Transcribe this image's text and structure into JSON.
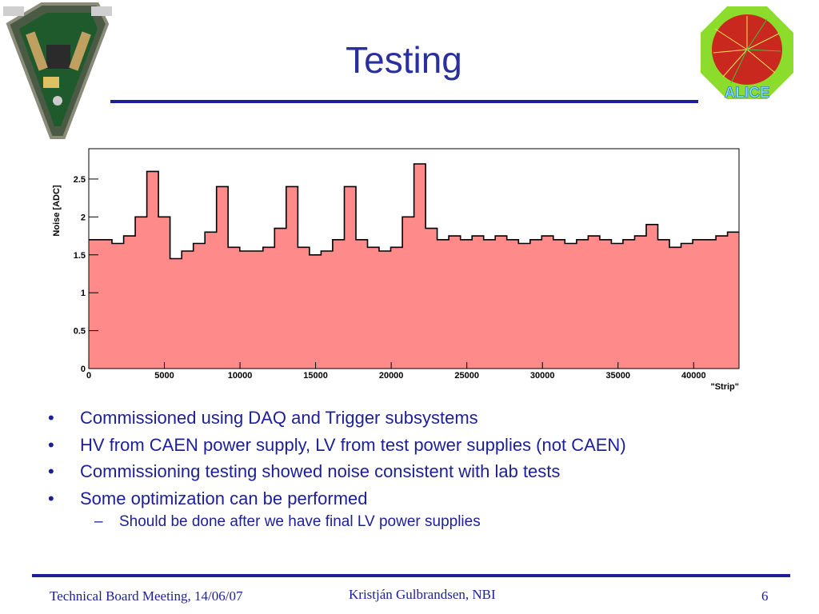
{
  "slide": {
    "title": "Testing",
    "page_number": "6",
    "footer_left": "Technical Board  Meeting, 14/06/07",
    "footer_center": "Kristján Gulbrandsen, NBI",
    "logo_text": "ALICE"
  },
  "bullets": [
    "Commissioned using DAQ and Trigger subsystems",
    "HV from CAEN power supply, LV from test power supplies (not CAEN)",
    "Commissioning testing showed noise consistent with lab tests",
    "Some optimization can be performed"
  ],
  "sub_bullets": [
    "Should be done after we have final LV power supplies"
  ],
  "bullet_marker": "•",
  "sub_bullet_marker": "–",
  "colors": {
    "text": "#1c1f96",
    "title": "#2a2f9e",
    "fill": "#ff8a8a",
    "line": "#000000"
  },
  "chart_data": {
    "type": "area",
    "ylabel": "Noise [ADC]",
    "xlabel": "\"Strip\"",
    "xlim": [
      0,
      43000
    ],
    "ylim": [
      0,
      2.9
    ],
    "x_ticks": [
      0,
      5000,
      10000,
      15000,
      20000,
      25000,
      30000,
      35000,
      40000
    ],
    "y_ticks": [
      0,
      0.5,
      1,
      1.5,
      2,
      2.5
    ],
    "x_tick_labels": [
      "0",
      "5000",
      "10000",
      "15000",
      "20000",
      "25000",
      "30000",
      "35000",
      "40000"
    ],
    "y_tick_labels": [
      "0",
      "0.5",
      "1",
      "1.5",
      "2",
      "2.5"
    ],
    "grid": false,
    "legend": "none",
    "x": [
      0,
      768,
      1536,
      2304,
      3072,
      3840,
      4608,
      5376,
      6144,
      6912,
      7680,
      8448,
      9216,
      9984,
      10752,
      11520,
      12288,
      13056,
      13824,
      14592,
      15360,
      16128,
      16896,
      17664,
      18432,
      19200,
      19968,
      20736,
      21504,
      22272,
      23040,
      23808,
      24576,
      25344,
      26112,
      26880,
      27648,
      28416,
      29184,
      29952,
      30720,
      31488,
      32256,
      33024,
      33792,
      34560,
      35328,
      36096,
      36864,
      37632,
      38400,
      39168,
      39936,
      40704,
      41472,
      42240
    ],
    "values": [
      1.7,
      1.7,
      1.65,
      1.75,
      2.0,
      2.6,
      2.0,
      1.45,
      1.55,
      1.65,
      1.8,
      2.4,
      1.6,
      1.55,
      1.55,
      1.6,
      1.85,
      2.4,
      1.6,
      1.5,
      1.55,
      1.7,
      2.4,
      1.7,
      1.6,
      1.55,
      1.6,
      2.0,
      2.7,
      1.85,
      1.7,
      1.75,
      1.7,
      1.75,
      1.7,
      1.75,
      1.7,
      1.65,
      1.7,
      1.75,
      1.7,
      1.65,
      1.7,
      1.75,
      1.7,
      1.65,
      1.7,
      1.75,
      1.9,
      1.7,
      1.6,
      1.65,
      1.7,
      1.7,
      1.75,
      1.8
    ]
  }
}
